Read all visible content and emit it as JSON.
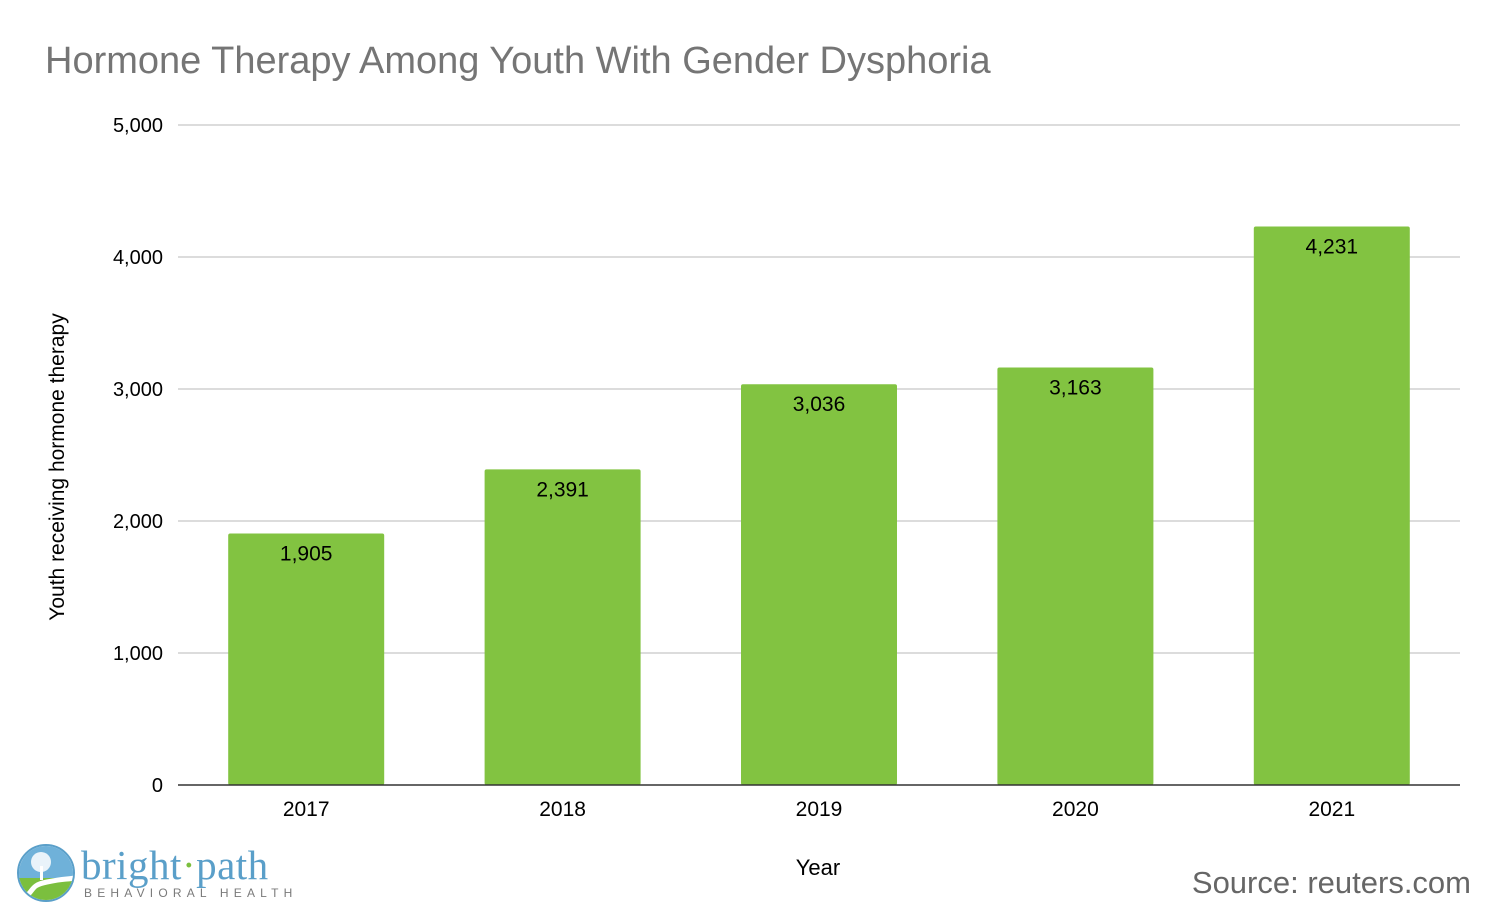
{
  "chart_data": {
    "type": "bar",
    "title": "Hormone Therapy Among Youth With Gender Dysphoria",
    "xlabel": "Year",
    "ylabel": "Youth receiving hormone therapy",
    "categories": [
      "2017",
      "2018",
      "2019",
      "2020",
      "2021"
    ],
    "values": [
      1905,
      2391,
      3036,
      3163,
      4231
    ],
    "data_labels": [
      "1,905",
      "2,391",
      "3,036",
      "3,163",
      "4,231"
    ],
    "ylim": [
      0,
      5000
    ],
    "yticks": [
      0,
      1000,
      2000,
      3000,
      4000,
      5000
    ],
    "ytick_labels": [
      "0",
      "1,000",
      "2,000",
      "3,000",
      "4,000",
      "5,000"
    ],
    "grid": true,
    "bar_color": "#82c341"
  },
  "source": "Source: reuters.com",
  "logo": {
    "brand": "bright",
    "brand_dot": "·",
    "brand_second": "path",
    "tagline": "BEHAVIORAL HEALTH",
    "colors": {
      "text": "#5a9fc9",
      "dot": "#7bbf3e"
    }
  }
}
